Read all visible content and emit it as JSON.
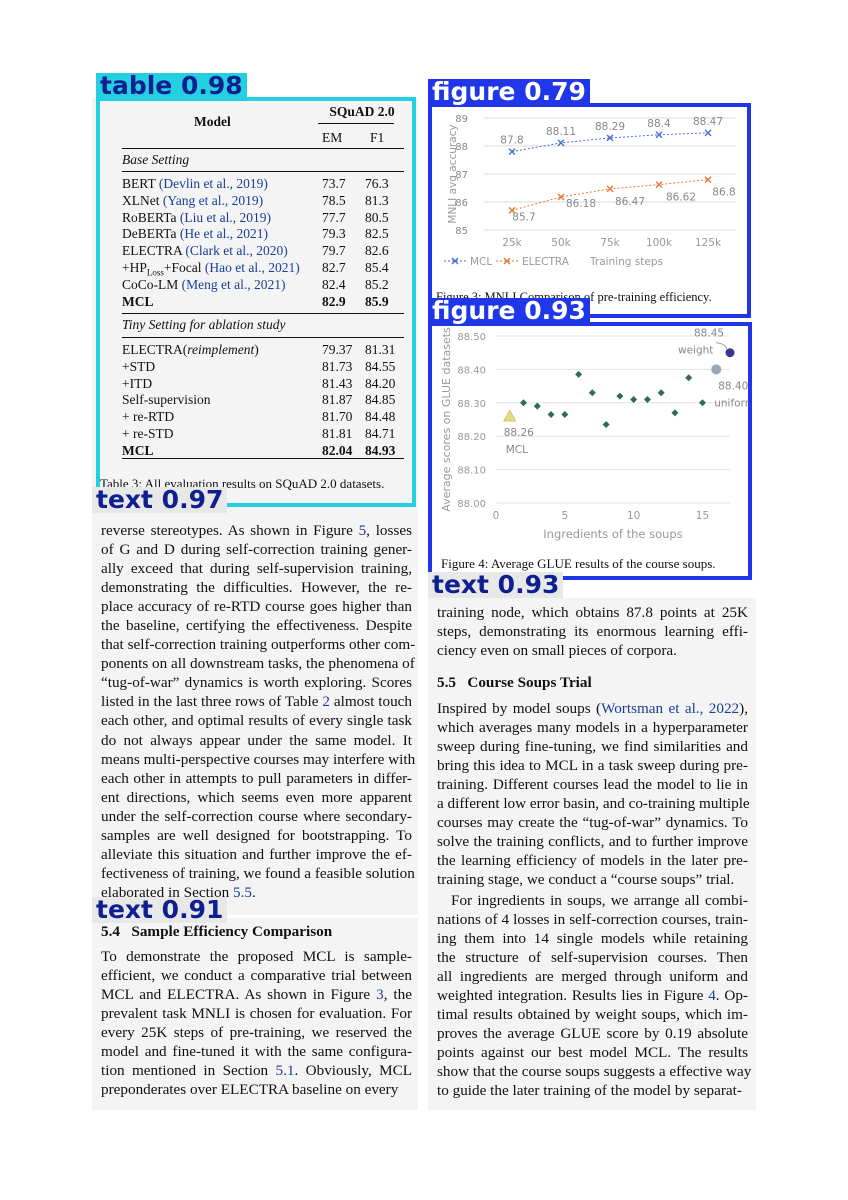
{
  "detections": {
    "table": "table 0.98",
    "figure_top": "figure 0.79",
    "figure_bottom": "figure 0.93",
    "text_left": "text 0.97",
    "text_right": "text 0.93",
    "text_section": "text 0.91"
  },
  "table": {
    "header_model": "Model",
    "header_group": "SQuAD 2.0",
    "header_em": "EM",
    "header_f1": "F1",
    "base_setting": "Base Setting",
    "base_rows": [
      {
        "model": "BERT",
        "cite": "(Devlin et al., 2019)",
        "em": "73.7",
        "f1": "76.3"
      },
      {
        "model": "XLNet",
        "cite": "(Yang et al., 2019)",
        "em": "78.5",
        "f1": "81.3"
      },
      {
        "model": "RoBERTa",
        "cite": "(Liu et al., 2019)",
        "em": "77.7",
        "f1": "80.5"
      },
      {
        "model": "DeBERTa",
        "cite": "(He et al., 2021)",
        "em": "79.3",
        "f1": "82.5"
      },
      {
        "model": "ELECTRA",
        "cite": "(Clark et al., 2020)",
        "em": "79.7",
        "f1": "82.6"
      },
      {
        "model": "+HP",
        "sub": "Loss",
        "model2": "+Focal",
        "cite": "(Hao et al., 2021)",
        "em": "82.7",
        "f1": "85.4"
      },
      {
        "model": "CoCo-LM",
        "cite": "(Meng et al., 2021)",
        "em": "82.4",
        "f1": "85.2"
      },
      {
        "model": "MCL",
        "cite": "",
        "em": "82.9",
        "f1": "85.9",
        "bold": true
      }
    ],
    "tiny_setting": "Tiny Setting for ablation study",
    "tiny_rows": [
      {
        "model": "ELECTRA(",
        "italic": "reimplement",
        "model2": ")",
        "em": "79.37",
        "f1": "81.31"
      },
      {
        "model": "+STD",
        "em": "81.73",
        "f1": "84.55"
      },
      {
        "model": "+ITD",
        "em": "81.43",
        "f1": "84.20"
      },
      {
        "model": "Self-supervision",
        "em": "81.87",
        "f1": "84.85"
      },
      {
        "model": "+ re-RTD",
        "em": "81.70",
        "f1": "84.48"
      },
      {
        "model": "+ re-STD",
        "em": "81.81",
        "f1": "84.71"
      },
      {
        "model": "MCL",
        "em": "82.04",
        "f1": "84.93",
        "bold": true
      }
    ],
    "caption": "Table 3: All evaluation results on SQuAD 2.0 datasets."
  },
  "figure3": {
    "caption": "Figure 3: MNLI Comparison of pre-training efficiency.",
    "chart_data": {
      "type": "line",
      "x": [
        "25k",
        "50k",
        "75k",
        "100k",
        "125k"
      ],
      "series": [
        {
          "name": "MCL",
          "values": [
            87.8,
            88.11,
            88.29,
            88.4,
            88.47
          ],
          "labels": [
            "87.8",
            "88.11",
            "88.29",
            "88.4",
            "88.47"
          ],
          "color": "#4a6fd6"
        },
        {
          "name": "ELECTRA",
          "values": [
            85.7,
            86.18,
            86.47,
            86.62,
            86.8
          ],
          "labels": [
            "85.7",
            "86.18",
            "86.47",
            "86.62",
            "86.8"
          ],
          "color": "#e8793a"
        }
      ],
      "ylabel": "MNLI avg accuracy",
      "xlabel": "Training steps",
      "ylim": [
        85,
        89
      ],
      "yticks": [
        "85",
        "86",
        "87",
        "88",
        "89"
      ],
      "grid": true,
      "legend": "bottom-left"
    }
  },
  "figure4": {
    "caption": "Figure 4: Average GLUE results of the course soups.",
    "chart_data": {
      "type": "scatter",
      "xlabel": "Ingredients of the soups",
      "ylabel": "Average scores on GLUE datasets",
      "xlim": [
        0,
        17
      ],
      "ylim": [
        88.0,
        88.5
      ],
      "xticks": [
        "0",
        "5",
        "10",
        "15"
      ],
      "yticks": [
        "88.00",
        "88.10",
        "88.20",
        "88.30",
        "88.40",
        "88.50"
      ],
      "series": [
        {
          "name": "ingredients",
          "color": "#2e6b5a",
          "points": [
            [
              2,
              88.3
            ],
            [
              3,
              88.29
            ],
            [
              4,
              88.265
            ],
            [
              5,
              88.265
            ],
            [
              6,
              88.385
            ],
            [
              7,
              88.33
            ],
            [
              8,
              88.235
            ],
            [
              9,
              88.32
            ],
            [
              10,
              88.31
            ],
            [
              11,
              88.31
            ],
            [
              12,
              88.33
            ],
            [
              13,
              88.27
            ],
            [
              14,
              88.375
            ],
            [
              15,
              88.3
            ]
          ]
        },
        {
          "name": "MCL",
          "color": "#e8dc8a",
          "points": [
            [
              1,
              88.26
            ]
          ]
        },
        {
          "name": "weight",
          "color": "#3a3a8a",
          "points": [
            [
              17,
              88.45
            ]
          ]
        },
        {
          "name": "uniform",
          "color": "#9aa8b8",
          "points": [
            [
              16,
              88.4
            ]
          ]
        }
      ],
      "annotations": [
        {
          "label": "88.26",
          "sub": "MCL"
        },
        {
          "label": "88.45",
          "sub": "weight"
        },
        {
          "label": "88.40",
          "sub": "uniform"
        }
      ]
    }
  },
  "left_para": {
    "lines": [
      "reverse stereotypes. As shown in Figure 5, losses",
      "of G and D during self-correction training gener-",
      "ally exceed that during self-supervision training,",
      "demonstrating the difficulties.  However, the re-",
      "place accuracy of re-RTD course goes higher than",
      "the baseline, certifying the effectiveness. Despite",
      "that self-correction training outperforms other com-",
      "ponents on all downstream tasks, the phenomena of",
      "“tug-of-war” dynamics is worth exploring. Scores",
      "listed in the last three rows of Table 2 almost touch",
      "each other, and optimal results of every single task",
      "do not always appear under the same model.  It",
      "means multi-perspective courses may interfere with",
      "each other in attempts to pull parameters in differ-",
      "ent directions, which seems even more apparent",
      "under the self-correction course where secondary-",
      "samples are well designed for bootstrapping. To",
      "alleviate this situation and further improve the ef-",
      "fectiveness of training, we found a feasible solution",
      "elaborated in Section 5.5."
    ]
  },
  "section54": {
    "heading": "5.4   Sample Efficiency Comparison",
    "lines": [
      "To demonstrate the proposed MCL is sample-",
      "efficient, we conduct a comparative trial between",
      "MCL and ELECTRA. As shown in Figure 3, the",
      "prevalent task MNLI is chosen for evaluation. For",
      "every 25K steps of pre-training, we reserved the",
      "model and fine-tuned it with the same configura-",
      "tion mentioned in Section 5.1. Obviously, MCL",
      "preponderates over ELECTRA baseline on every"
    ]
  },
  "right_para": {
    "lines_top": [
      "training node, which obtains 87.8 points at 25K",
      "steps, demonstrating its enormous learning effi-",
      "ciency even on small pieces of corpora."
    ],
    "heading": "5.5   Course Soups Trial",
    "lines_a": [
      "Inspired by model soups (Wortsman et al., 2022),",
      "which averages many models in a hyperparameter",
      "sweep during fine-tuning, we find similarities and",
      "bring this idea to MCL in a task sweep during pre-",
      "training. Different courses lead the model to lie in",
      "a different low error basin, and co-training multiple",
      "courses may create the “tug-of-war” dynamics. To",
      "solve the training conflicts, and to further improve",
      "the learning efficiency of models in the later pre-",
      "training stage, we conduct a “course soups” trial."
    ],
    "lines_b": [
      "For ingredients in soups, we arrange all combi-",
      "nations of 4 losses in self-correction courses, train-",
      "ing them into 14 single models while retaining",
      "the structure of self-supervision courses.  Then",
      "all ingredients are merged through uniform and",
      "weighted integration. Results lies in Figure 4. Op-",
      "timal results obtained by weight soups, which im-",
      "proves the average GLUE score by 0.19 absolute",
      "points against our best model MCL. The results",
      "show that the course soups suggests a effective way",
      "to guide the later training of the model by separat-"
    ]
  }
}
